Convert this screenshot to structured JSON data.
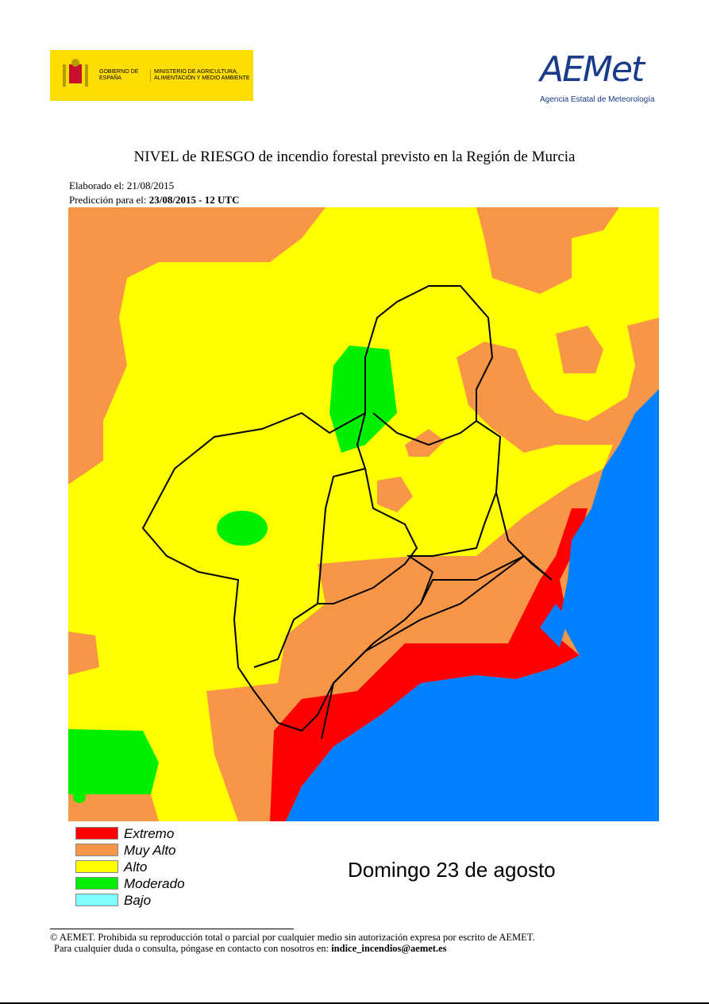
{
  "header": {
    "government": "GOBIERNO DE ESPAÑA",
    "ministry": "MINISTERIO DE AGRICULTURA, ALIMENTACIÓN Y MEDIO AMBIENTE",
    "logo": "AEMet",
    "agency": "Agencia Estatal de Meteorología"
  },
  "title": "NIVEL de RIESGO de incendio forestal previsto en la Región de Murcia",
  "made": {
    "label": "Elaborado el:",
    "date": "21/08/2015"
  },
  "prediction": {
    "label": "Predicción para el:",
    "date": "23/08/2015 - 12 UTC"
  },
  "legend": [
    {
      "label": "Extremo",
      "color": "#ff0000"
    },
    {
      "label": "Muy Alto",
      "color": "#f79646"
    },
    {
      "label": "Alto",
      "color": "#ffff00"
    },
    {
      "label": "Moderado",
      "color": "#00ee00"
    },
    {
      "label": "Bajo",
      "color": "#80ffff"
    }
  ],
  "day": "Domingo 23 de agosto",
  "footer": {
    "line1": "© AEMET. Prohibida su reproducción total o parcial por cualquier medio sin autorización expresa por escrito de AEMET.",
    "line2": "Para cualquier duda o consulta, póngase en contacto con nosotros en:",
    "email": "indice_incendios@aemet.es"
  }
}
